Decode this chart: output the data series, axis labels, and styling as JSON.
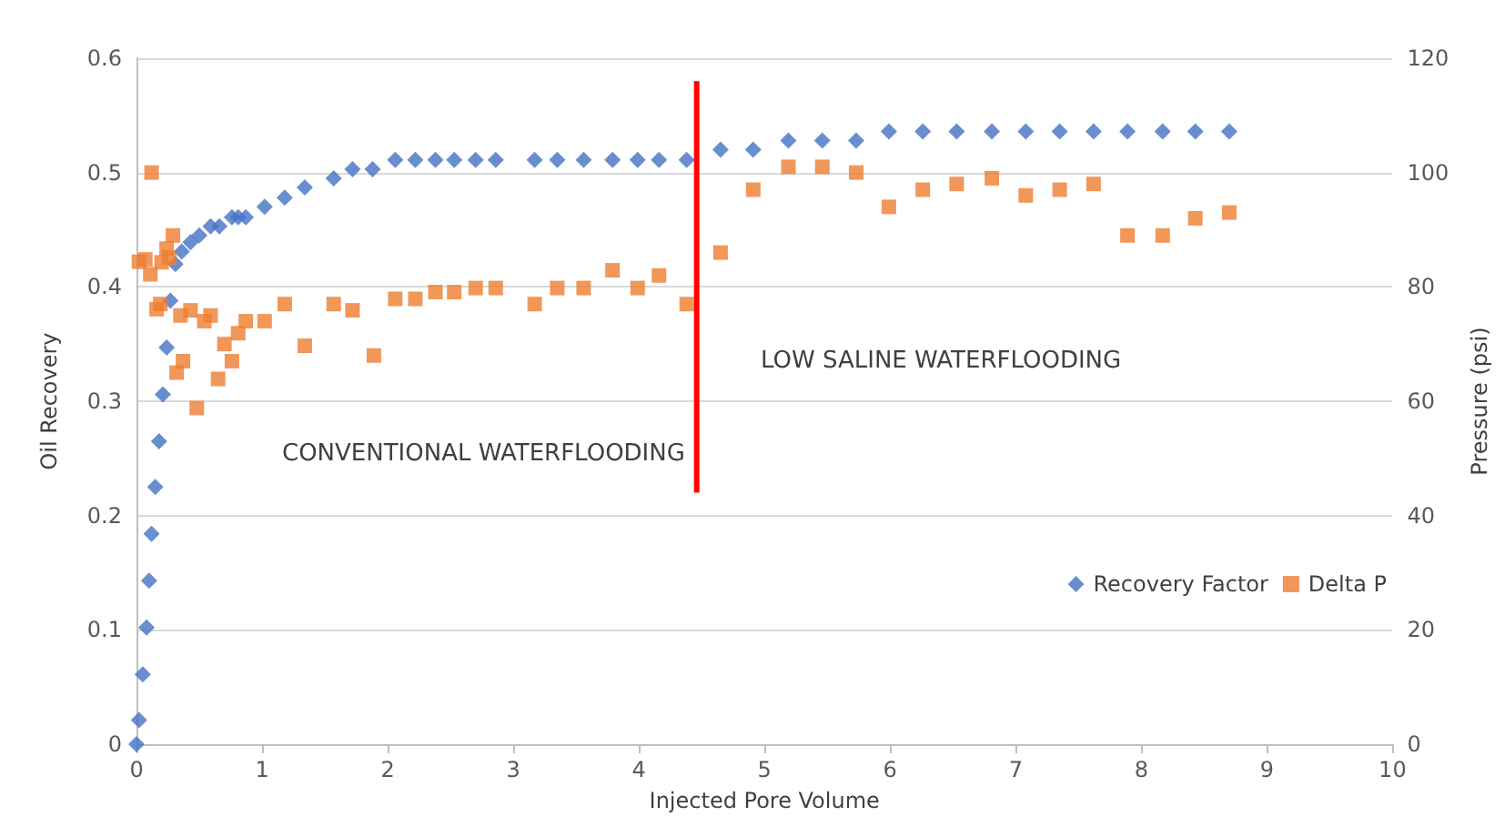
{
  "chart_data": {
    "type": "scatter",
    "xlabel": "Injected Pore Volume",
    "ylabel": "Oil Recovery",
    "y2label": "Pressure (psi)",
    "xlim": [
      0,
      10
    ],
    "xticks": [
      0,
      1,
      2,
      3,
      4,
      5,
      6,
      7,
      8,
      9,
      10
    ],
    "ylim": [
      0,
      0.6
    ],
    "yticks": [
      0,
      0.1,
      0.2,
      0.3,
      0.4,
      0.5,
      0.6
    ],
    "y2lim": [
      0,
      120
    ],
    "y2ticks": [
      0,
      20,
      40,
      60,
      80,
      100,
      120
    ],
    "grid": "y",
    "legend": "bottom right",
    "annotations": [
      "CONVENTIONAL WATERFLOODING",
      "LOW SALINE WATERFLOODING"
    ],
    "series": [
      {
        "name": "Recovery Factor",
        "color": "#4472c4",
        "marker": "diamond",
        "x": [
          0,
          0.02,
          0.05,
          0.08,
          0.1,
          0.12,
          0.15,
          0.18,
          0.21,
          0.24,
          0.27,
          0.31,
          0.36,
          0.43,
          0.5,
          0.59,
          0.66,
          0.76,
          0.81,
          0.87,
          1.02,
          1.18,
          1.34,
          1.57,
          1.72,
          1.88,
          2.06,
          2.22,
          2.38,
          2.53,
          2.7,
          2.86,
          3.17,
          3.35,
          3.56,
          3.79,
          3.99,
          4.16,
          4.38,
          4.65,
          4.91,
          5.19,
          5.46,
          5.73,
          5.99,
          6.26,
          6.53,
          6.81,
          7.08,
          7.35,
          7.62,
          7.89,
          8.17,
          8.43,
          8.7
        ],
        "values": [
          0,
          0.021,
          0.061,
          0.102,
          0.143,
          0.184,
          0.225,
          0.265,
          0.306,
          0.347,
          0.388,
          0.42,
          0.431,
          0.439,
          0.445,
          0.453,
          0.453,
          0.461,
          0.461,
          0.461,
          0.47,
          0.478,
          0.487,
          0.495,
          0.503,
          0.503,
          0.511,
          0.511,
          0.511,
          0.511,
          0.511,
          0.511,
          0.511,
          0.511,
          0.511,
          0.511,
          0.511,
          0.511,
          0.511,
          0.52,
          0.52,
          0.528,
          0.528,
          0.528,
          0.536,
          0.536,
          0.536,
          0.536,
          0.536,
          0.536,
          0.536,
          0.536,
          0.536,
          0.536,
          0.536
        ]
      },
      {
        "name": "Delta P",
        "color": "#ed7d31",
        "marker": "square",
        "axis": "y2",
        "x": [
          0.02,
          0.07,
          0.11,
          0.12,
          0.16,
          0.19,
          0.2,
          0.24,
          0.26,
          0.29,
          0.32,
          0.35,
          0.37,
          0.43,
          0.48,
          0.54,
          0.59,
          0.65,
          0.7,
          0.76,
          0.81,
          0.87,
          1.02,
          1.18,
          1.34,
          1.57,
          1.72,
          1.89,
          2.06,
          2.22,
          2.38,
          2.53,
          2.7,
          2.86,
          3.17,
          3.35,
          3.56,
          3.79,
          3.99,
          4.16,
          4.38,
          4.65,
          4.91,
          5.19,
          5.46,
          5.73,
          5.99,
          6.26,
          6.53,
          6.81,
          7.08,
          7.35,
          7.62,
          7.89,
          8.17,
          8.43,
          8.7
        ],
        "values": [
          84.4,
          84.8,
          82.2,
          100,
          76.1,
          77,
          84.3,
          86.7,
          85.1,
          89,
          65,
          75,
          67,
          75.9,
          58.8,
          74,
          75,
          63.9,
          70,
          67,
          71.9,
          74,
          74,
          77,
          69.7,
          77,
          75.9,
          68,
          77.9,
          77.9,
          79.1,
          79.1,
          79.8,
          79.8,
          77,
          79.8,
          79.8,
          82.9,
          79.8,
          82,
          77,
          86,
          97,
          101,
          101,
          100,
          94,
          97,
          98,
          99,
          96,
          97,
          98,
          89,
          89,
          92,
          93
        ]
      },
      {
        "type": "line",
        "color": "#ff0000",
        "marker": "none",
        "x": [
          4.46,
          4.46
        ],
        "values": [
          0.22,
          0.58
        ]
      }
    ]
  }
}
